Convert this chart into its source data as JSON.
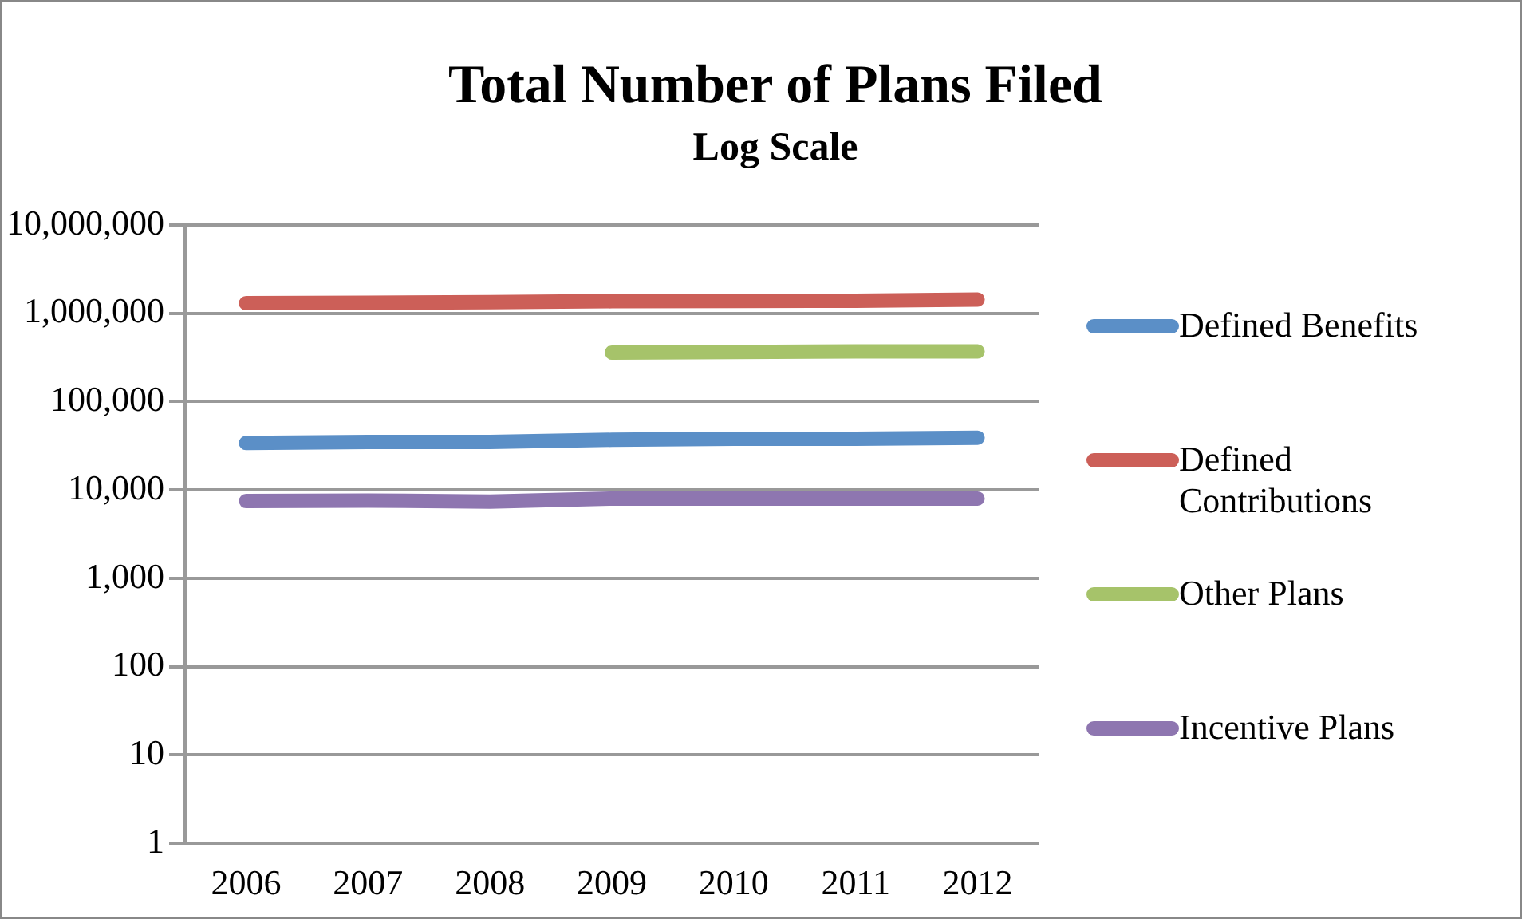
{
  "chart_data": {
    "type": "line",
    "title": "Total Number of Plans Filed",
    "subtitle": "Log Scale",
    "categories": [
      "2006",
      "2007",
      "2008",
      "2009",
      "2010",
      "2011",
      "2012"
    ],
    "series": [
      {
        "name": "Defined Benefits",
        "color": "#5b8fc7",
        "values": [
          34000,
          35000,
          35000,
          37000,
          38000,
          38000,
          39000
        ]
      },
      {
        "name": "Defined Contributions",
        "color": "#cc5f58",
        "values": [
          1300000,
          1320000,
          1340000,
          1370000,
          1380000,
          1390000,
          1430000
        ]
      },
      {
        "name": "Other Plans",
        "color": "#a6c36a",
        "values": [
          null,
          null,
          null,
          360000,
          365000,
          370000,
          370000
        ]
      },
      {
        "name": "Incentive Plans",
        "color": "#8e76b0",
        "values": [
          7500,
          7600,
          7400,
          8000,
          8000,
          8000,
          8000
        ]
      }
    ],
    "log": true,
    "ylim": [
      1,
      10000000
    ],
    "yticks": [
      1,
      10,
      100,
      {
        "value": 1000,
        "label": "1,000"
      },
      {
        "value": 10000,
        "label": "10,000"
      },
      {
        "value": 100000,
        "label": "100,000"
      },
      {
        "value": 1000000,
        "label": "1,000,000"
      },
      {
        "value": 10000000,
        "label": "10,000,000"
      }
    ],
    "grid": "y",
    "legend": "right",
    "marker": "none",
    "line_style": "solid"
  }
}
